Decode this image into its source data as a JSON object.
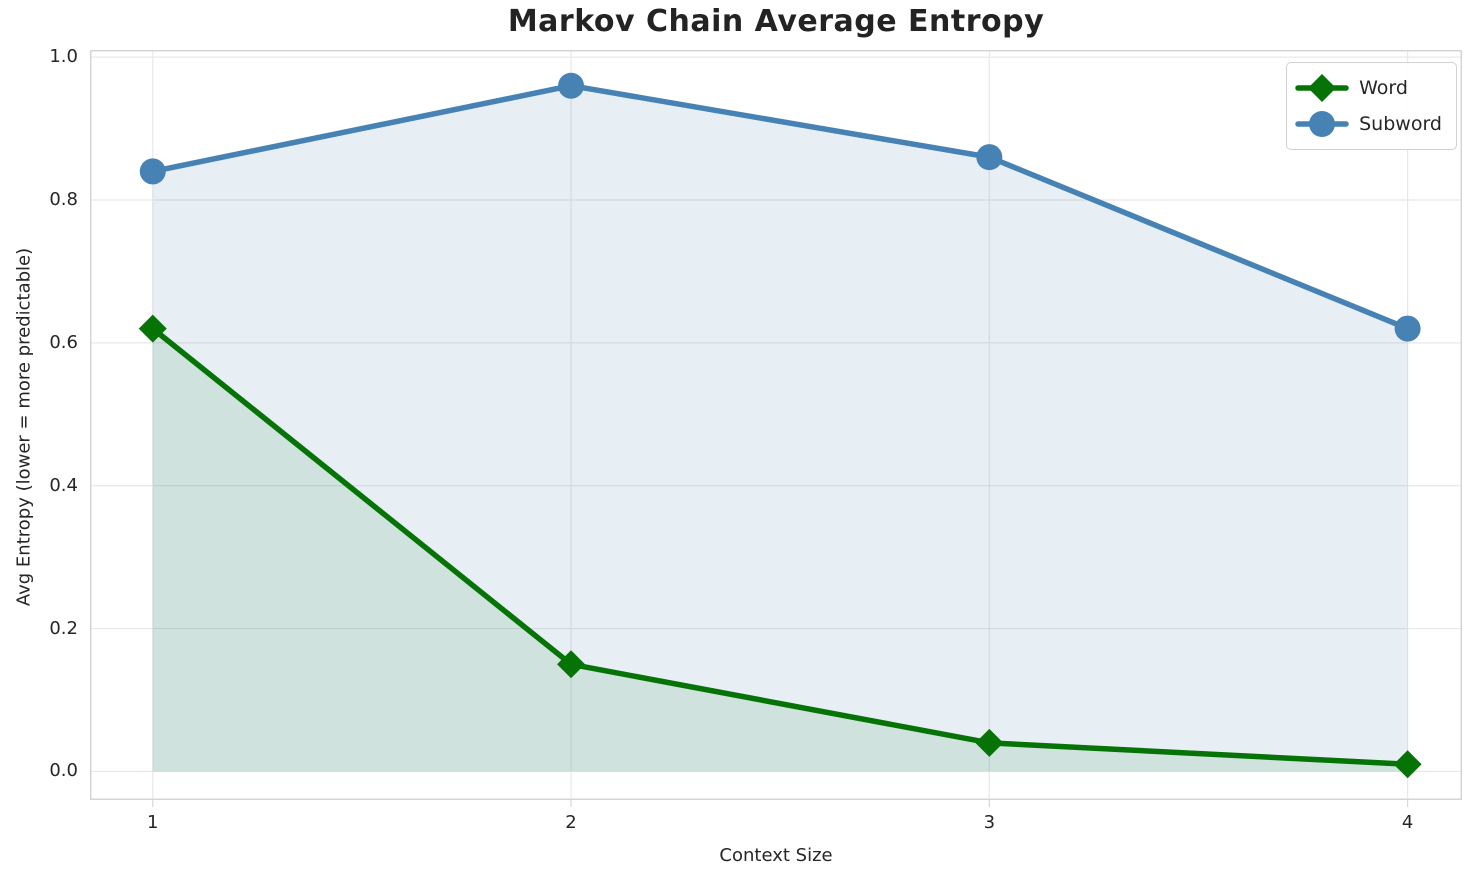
{
  "chart_data": {
    "type": "line",
    "title": "Markov Chain Average Entropy",
    "xlabel": "Context Size",
    "ylabel": "Avg Entropy (lower = more predictable)",
    "x": [
      1,
      2,
      3,
      4
    ],
    "xtick_labels": [
      "1",
      "2",
      "3",
      "4"
    ],
    "yticks": [
      0.0,
      0.2,
      0.4,
      0.6,
      0.8,
      1.0
    ],
    "ytick_labels": [
      "0.0",
      "0.2",
      "0.4",
      "0.6",
      "0.8",
      "1.0"
    ],
    "xlim": [
      0.85,
      4.13
    ],
    "ylim": [
      -0.04,
      1.01
    ],
    "grid": true,
    "legend_position": "upper right",
    "fill_baseline": 0.0,
    "series": [
      {
        "name": "Word",
        "marker": "diamond",
        "color": "#067306",
        "fill_color": "rgba(6,115,6,0.10)",
        "values": [
          0.62,
          0.15,
          0.04,
          0.01
        ]
      },
      {
        "name": "Subword",
        "marker": "circle",
        "color": "#4682b4",
        "fill_color": "rgba(70,130,180,0.13)",
        "values": [
          0.84,
          0.96,
          0.86,
          0.62
        ]
      }
    ],
    "style": {
      "grid_color": "#e8e8ea",
      "spine_color": "#d4d4d4",
      "tick_color": "#d8d8d8",
      "text_color": "#262626",
      "line_width": 5.5,
      "marker_size": 13
    }
  }
}
